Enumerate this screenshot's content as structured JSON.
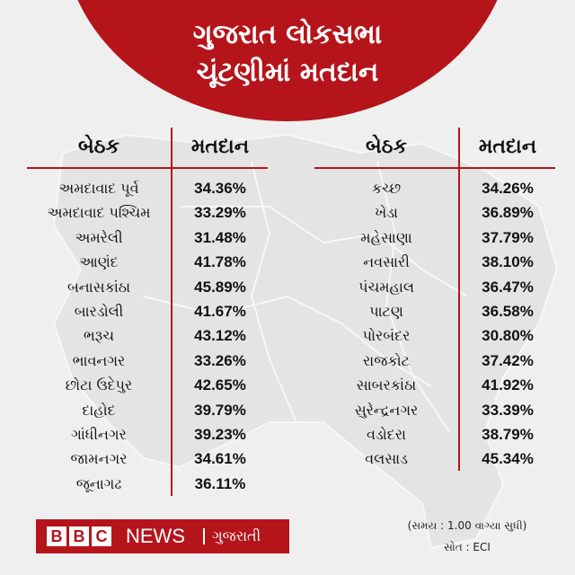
{
  "header": {
    "line1": "ગુજરાત લોકસભા",
    "line2": "ચૂંટણીમાં મતદાન"
  },
  "columns": {
    "seat": "બેઠક",
    "turnout": "મતદાન"
  },
  "left_rows": [
    {
      "seat": "અમદાવાદ પૂર્વ",
      "turnout": "34.36%"
    },
    {
      "seat": "અમદાવાદ પશ્ચિમ",
      "turnout": "33.29%"
    },
    {
      "seat": "અમરેલી",
      "turnout": "31.48%"
    },
    {
      "seat": "આણંદ",
      "turnout": "41.78%"
    },
    {
      "seat": "બનાસકાંઠા",
      "turnout": "45.89%"
    },
    {
      "seat": "બારડોલી",
      "turnout": "41.67%"
    },
    {
      "seat": "ભરૂચ",
      "turnout": "43.12%"
    },
    {
      "seat": "ભાવનગર",
      "turnout": "33.26%"
    },
    {
      "seat": "છોટા ઉદેપુર",
      "turnout": "42.65%"
    },
    {
      "seat": "દાહોદ",
      "turnout": "39.79%"
    },
    {
      "seat": "ગાંધીનગર",
      "turnout": "39.23%"
    },
    {
      "seat": "જામનગર",
      "turnout": "34.61%"
    },
    {
      "seat": "જૂનાગઢ",
      "turnout": "36.11%"
    }
  ],
  "right_rows": [
    {
      "seat": "કચ્છ",
      "turnout": "34.26%"
    },
    {
      "seat": "ખેડા",
      "turnout": "36.89%"
    },
    {
      "seat": "મહેસાણા",
      "turnout": "37.79%"
    },
    {
      "seat": "નવસારી",
      "turnout": "38.10%"
    },
    {
      "seat": "પંચમહાલ",
      "turnout": "36.47%"
    },
    {
      "seat": "પાટણ",
      "turnout": "36.58%"
    },
    {
      "seat": "પોરબંદર",
      "turnout": "30.80%"
    },
    {
      "seat": "રાજકોટ",
      "turnout": "37.42%"
    },
    {
      "seat": "સાબરકાંઠા",
      "turnout": "41.92%"
    },
    {
      "seat": "સુરેન્દ્રનગર",
      "turnout": "33.39%"
    },
    {
      "seat": "વડોદરા",
      "turnout": "38.79%"
    },
    {
      "seat": "વલસાડ",
      "turnout": "45.34%"
    }
  ],
  "footer": {
    "bbc_letters": [
      "B",
      "B",
      "C"
    ],
    "news": "NEWS",
    "language": "ગુજરાતી",
    "time_note": "(સમય : 1.00 વાગ્યા સુધી)",
    "source": "સોત : ECI"
  },
  "colors": {
    "accent": "#b5141b",
    "background": "#efefef",
    "map": "#e3e3e3"
  }
}
